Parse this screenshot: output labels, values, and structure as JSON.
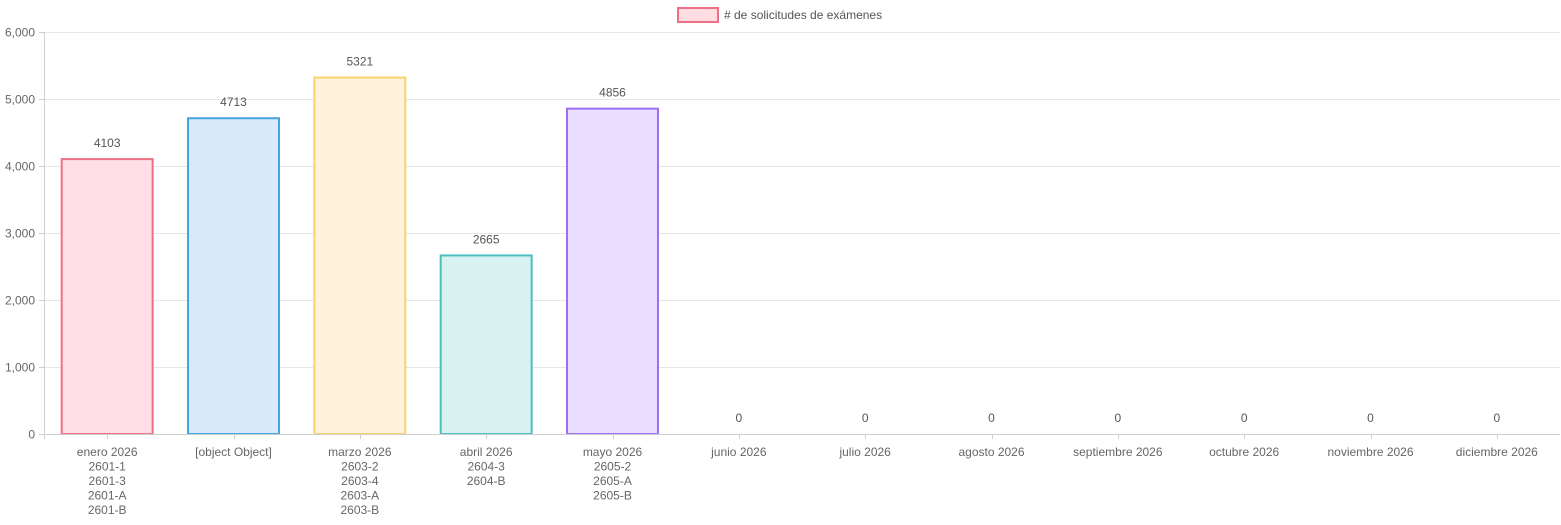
{
  "chart_data": {
    "type": "bar",
    "legend": {
      "position": "top-center",
      "label": "# de solicitudes de exámenes",
      "fill": "#ffdde2",
      "stroke": "#ef6f86"
    },
    "y_axis": {
      "min": 0,
      "max": 6000,
      "step": 1000,
      "tick_labels": [
        "0",
        "1,000",
        "2,000",
        "3,000",
        "4,000",
        "5,000",
        "6,000"
      ]
    },
    "grid": true,
    "categories": [
      {
        "lines": [
          "enero 2026",
          "2601-1",
          "2601-3",
          "2601-A",
          "2601-B"
        ]
      },
      {
        "lines": [
          "[object Object]"
        ]
      },
      {
        "lines": [
          "marzo 2026",
          "2603-2",
          "2603-4",
          "2603-A",
          "2603-B"
        ]
      },
      {
        "lines": [
          "abril 2026",
          "2604-3",
          "2604-B"
        ]
      },
      {
        "lines": [
          "mayo 2026",
          "2605-2",
          "2605-A",
          "2605-B"
        ]
      },
      {
        "lines": [
          "junio 2026"
        ]
      },
      {
        "lines": [
          "julio 2026"
        ]
      },
      {
        "lines": [
          "agosto 2026"
        ]
      },
      {
        "lines": [
          "septiembre 2026"
        ]
      },
      {
        "lines": [
          "octubre 2026"
        ]
      },
      {
        "lines": [
          "noviembre 2026"
        ]
      },
      {
        "lines": [
          "diciembre 2026"
        ]
      }
    ],
    "series": [
      {
        "values": [
          4103,
          4713,
          5321,
          2665,
          4856,
          0,
          0,
          0,
          0,
          0,
          0,
          0
        ],
        "data_labels": [
          "4103",
          "4713",
          "5321",
          "2665",
          "4856",
          "0",
          "0",
          "0",
          "0",
          "0",
          "0",
          "0"
        ],
        "fill_colors": [
          "#ffdfe5",
          "#d7ebf9",
          "#fff3dc",
          "#d8f1f1",
          "#e9deff",
          "#e9e9eb",
          "#ffdfe5",
          "#d7ebf9",
          "#fff3dc",
          "#d8f1f1",
          "#e9deff",
          "#e9e9eb"
        ],
        "border_colors": [
          "#ef6f86",
          "#44a3e3",
          "#fcd16e",
          "#4dbfbf",
          "#9e6ef0",
          "#c9cbcf",
          "#ef6f86",
          "#44a3e3",
          "#fcd16e",
          "#4dbfbf",
          "#9e6ef0",
          "#c9cbcf"
        ]
      }
    ]
  }
}
